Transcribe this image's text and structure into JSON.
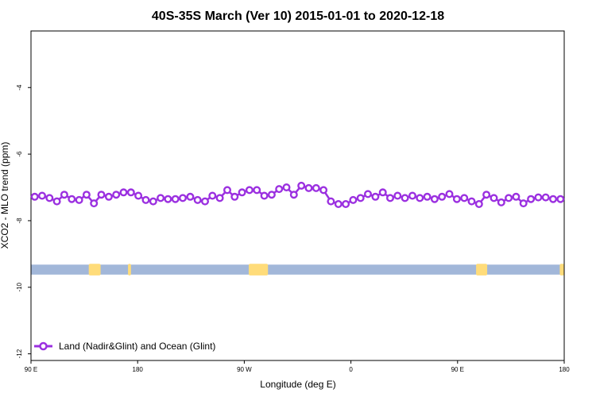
{
  "chart_data": {
    "type": "line",
    "title": "40S-35S March (Ver 10)   2015-01-01 to 2020-12-18",
    "xlabel": "Longitude (deg E)",
    "ylabel": "XCO2 - MLO trend (ppm)",
    "xlim": [
      90,
      450
    ],
    "ylim": [
      -12.2,
      -2.3
    ],
    "x_ticks": [
      {
        "value": 90,
        "label": "90 E"
      },
      {
        "value": 162,
        "label": "180"
      },
      {
        "value": 234,
        "label": "90 W"
      },
      {
        "value": 306,
        "label": "0"
      },
      {
        "value": 378,
        "label": "90 E"
      },
      {
        "value": 450,
        "label": "180"
      }
    ],
    "y_ticks": [
      {
        "value": -4,
        "label": "-4"
      },
      {
        "value": -6,
        "label": "-6"
      },
      {
        "value": -8,
        "label": "-8"
      },
      {
        "value": -10,
        "label": "-10"
      },
      {
        "value": -12,
        "label": "-12"
      }
    ],
    "grid": false,
    "legend_position": "bottom-left",
    "series": [
      {
        "name": "Land (Nadir&Glint) and Ocean (Glint)",
        "color": "#9b30e0",
        "marker": "open-circle",
        "x": [
          92.5,
          97.5,
          102.5,
          107.5,
          112.5,
          117.5,
          122.5,
          127.5,
          132.5,
          137.5,
          142.5,
          147.5,
          152.5,
          157.5,
          162.5,
          167.5,
          172.5,
          177.5,
          182.5,
          187.5,
          192.5,
          197.5,
          202.5,
          207.5,
          212.5,
          217.5,
          222.5,
          227.5,
          232.5,
          237.5,
          242.5,
          247.5,
          252.5,
          257.5,
          262.5,
          267.5,
          272.5,
          277.5,
          282.5,
          287.5,
          292.5,
          297.5,
          302.5,
          307.5,
          312.5,
          317.5,
          322.5,
          327.5,
          332.5,
          337.5,
          342.5,
          347.5,
          352.5,
          357.5,
          362.5,
          367.5,
          372.5,
          377.5,
          382.5,
          387.5,
          392.5,
          397.5,
          402.5,
          407.5,
          412.5,
          417.5,
          422.5,
          427.5,
          432.5,
          437.5,
          442.5,
          447.5
        ],
        "y": [
          -7.28,
          -7.25,
          -7.32,
          -7.42,
          -7.22,
          -7.35,
          -7.38,
          -7.22,
          -7.48,
          -7.22,
          -7.28,
          -7.22,
          -7.15,
          -7.15,
          -7.25,
          -7.38,
          -7.42,
          -7.32,
          -7.35,
          -7.35,
          -7.32,
          -7.28,
          -7.38,
          -7.42,
          -7.25,
          -7.32,
          -7.08,
          -7.28,
          -7.15,
          -7.08,
          -7.08,
          -7.25,
          -7.22,
          -7.05,
          -7.0,
          -7.22,
          -6.95,
          -7.02,
          -7.02,
          -7.08,
          -7.42,
          -7.5,
          -7.5,
          -7.38,
          -7.32,
          -7.2,
          -7.28,
          -7.15,
          -7.32,
          -7.25,
          -7.32,
          -7.25,
          -7.32,
          -7.28,
          -7.35,
          -7.28,
          -7.2,
          -7.35,
          -7.32,
          -7.42,
          -7.5,
          -7.22,
          -7.32,
          -7.45,
          -7.32,
          -7.28,
          -7.48,
          -7.35,
          -7.3,
          -7.3,
          -7.35,
          -7.35
        ]
      }
    ],
    "landmask": {
      "ocean_color": "#a2b7d9",
      "land_color": "#ffdc7a",
      "y_range": [
        -9.62,
        -9.32
      ],
      "land_ranges": [
        [
          129,
          137
        ],
        [
          155.5,
          157.5
        ],
        [
          237,
          250
        ],
        [
          390.5,
          398
        ],
        [
          447,
          450
        ]
      ]
    }
  }
}
